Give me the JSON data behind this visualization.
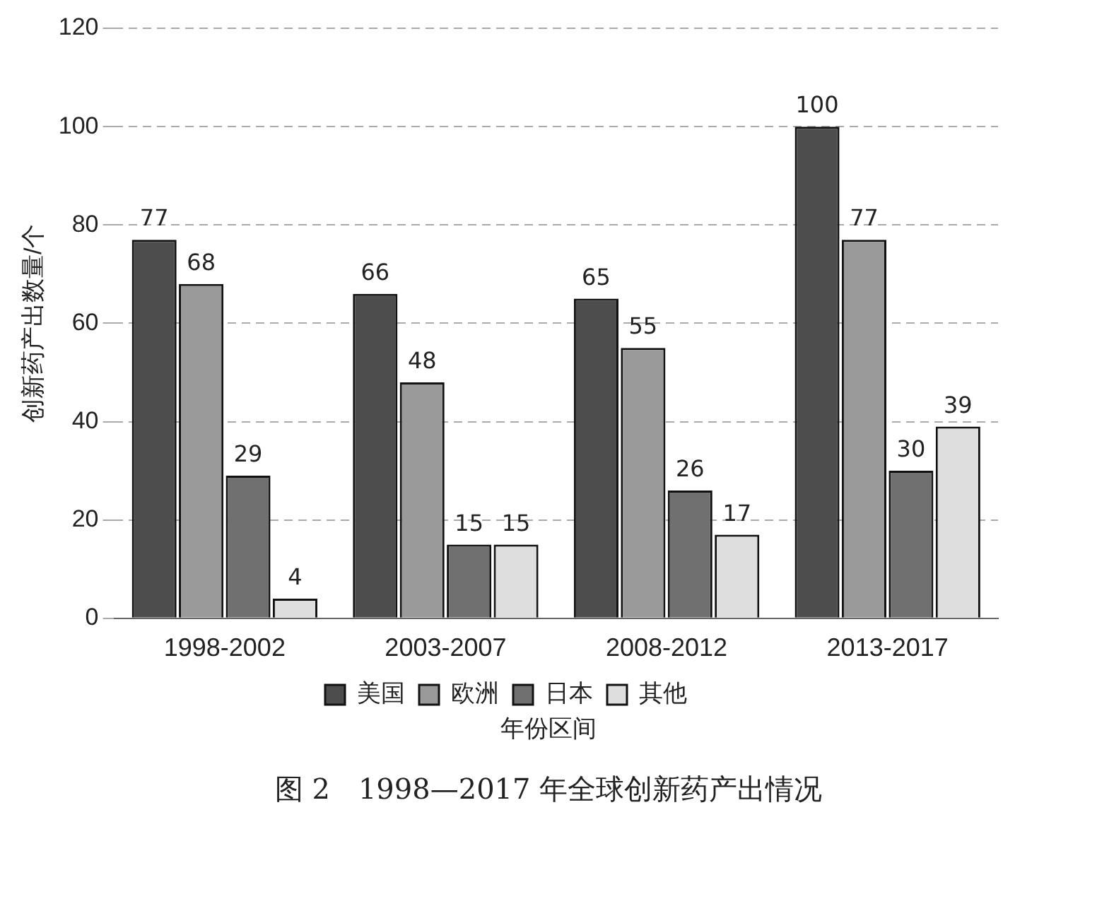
{
  "chart_data": {
    "type": "bar",
    "title": "图 2　1998—2017 年全球创新药产出情况",
    "xlabel": "年份区间",
    "ylabel": "创新药产出数量/个",
    "categories": [
      "1998-2002",
      "2003-2007",
      "2008-2012",
      "2013-2017"
    ],
    "series": [
      {
        "name": "美国",
        "color": "#4d4d4d",
        "values": [
          77,
          66,
          65,
          100
        ]
      },
      {
        "name": "欧洲",
        "color": "#9a9a9a",
        "values": [
          68,
          48,
          55,
          77
        ]
      },
      {
        "name": "日本",
        "color": "#707070",
        "values": [
          29,
          15,
          26,
          30
        ]
      },
      {
        "name": "其他",
        "color": "#dedede",
        "values": [
          4,
          15,
          17,
          39
        ]
      }
    ],
    "ylim": [
      0,
      120
    ],
    "yticks": [
      0,
      20,
      40,
      60,
      80,
      100,
      120
    ],
    "grid": "y",
    "legend": "bottom",
    "data_labels": true
  }
}
